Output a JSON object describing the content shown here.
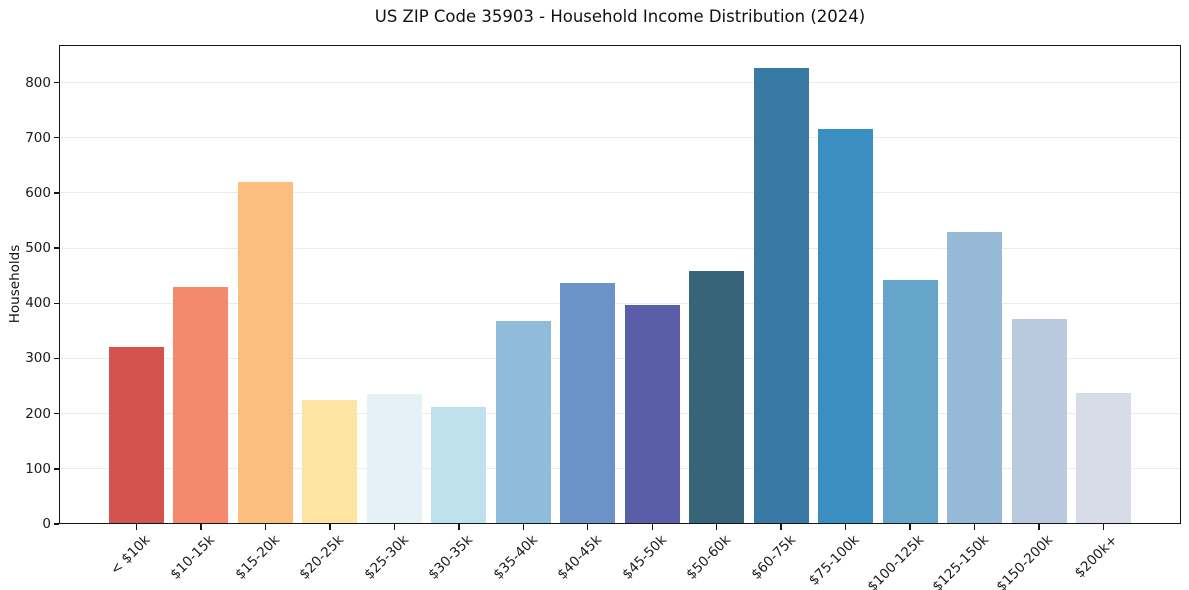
{
  "chart_data": {
    "type": "bar",
    "title": "US ZIP Code 35903 - Household Income Distribution (2024)",
    "ylabel": "Households",
    "xlabel": "",
    "categories": [
      "< $10k",
      "$10-15k",
      "$15-20k",
      "$20-25k",
      "$25-30k",
      "$30-35k",
      "$35-40k",
      "$40-45k",
      "$45-50k",
      "$50-60k",
      "$60-75k",
      "$75-100k",
      "$100-125k",
      "$125-150k",
      "$150-200k",
      "$200k+"
    ],
    "values": [
      320,
      429,
      620,
      224,
      236,
      212,
      367,
      436,
      396,
      459,
      827,
      716,
      442,
      530,
      372,
      237
    ],
    "bar_colors": [
      "#d5534f",
      "#f48a6b",
      "#fcbe7e",
      "#fde4a1",
      "#e5f1f6",
      "#bfe0ed",
      "#90bcdb",
      "#6b93c6",
      "#5a5ea9",
      "#38647a",
      "#397aa4",
      "#3a8ec0",
      "#64a5c9",
      "#95b9d6",
      "#b9cade",
      "#d8dbe8"
    ],
    "yticks": [
      0,
      100,
      200,
      300,
      400,
      500,
      600,
      700,
      800
    ],
    "ylim": [
      0,
      868
    ],
    "grid": true,
    "legend": false,
    "gridline_color": "#ebebeb",
    "axis_color": "#15151c"
  }
}
